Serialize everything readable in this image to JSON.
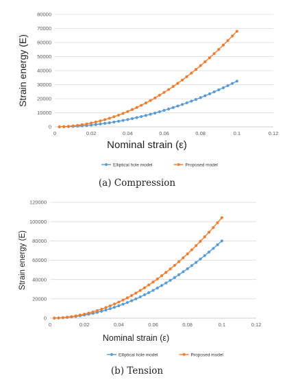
{
  "chart_data": [
    {
      "type": "line",
      "caption": "(a)  Compression",
      "xlabel": "Nominal strain (ε)",
      "ylabel": "Strain energy (E)",
      "xlim": [
        0,
        0.12
      ],
      "ylim": [
        0,
        80000
      ],
      "x_ticks": [
        "0",
        "0.02",
        "0.04",
        "0.06",
        "0.08",
        "0.1",
        "0.12"
      ],
      "y_ticks": [
        "0",
        "10000",
        "20000",
        "30000",
        "40000",
        "50000",
        "60000",
        "70000",
        "80000"
      ],
      "grid": "horizontal",
      "legend": "bottom",
      "x": [
        0.0025,
        0.005,
        0.0075,
        0.01,
        0.0125,
        0.015,
        0.0175,
        0.02,
        0.0225,
        0.025,
        0.0275,
        0.03,
        0.0325,
        0.035,
        0.0375,
        0.04,
        0.0425,
        0.045,
        0.0475,
        0.05,
        0.0525,
        0.055,
        0.0575,
        0.06,
        0.0625,
        0.065,
        0.0675,
        0.07,
        0.0725,
        0.075,
        0.0775,
        0.08,
        0.0825,
        0.085,
        0.0875,
        0.09,
        0.0925,
        0.095,
        0.0975,
        0.1
      ],
      "series": [
        {
          "name": "Elliptical hole model",
          "color": "#5b9bd5",
          "values": [
            20,
            81,
            183,
            325,
            508,
            731,
            995,
            1300,
            1645,
            2031,
            2458,
            2925,
            3433,
            3981,
            4570,
            5200,
            5870,
            6581,
            7333,
            8125,
            8958,
            9831,
            10745,
            11700,
            12695,
            13731,
            14808,
            15925,
            17083,
            18281,
            19520,
            20800,
            22120,
            23481,
            24883,
            26325,
            27808,
            29331,
            30895,
            32500
          ]
        },
        {
          "name": "Proposed model",
          "color": "#ed7d31",
          "values": [
            43,
            170,
            383,
            680,
            1063,
            1530,
            2083,
            2720,
            3443,
            4250,
            5143,
            6120,
            7183,
            8330,
            9563,
            10880,
            12283,
            13770,
            15343,
            17000,
            18743,
            20570,
            22483,
            24480,
            26563,
            28730,
            30983,
            33320,
            35743,
            38250,
            40843,
            43520,
            46283,
            49130,
            52063,
            55080,
            58183,
            61370,
            64643,
            68000
          ]
        }
      ]
    },
    {
      "type": "line",
      "caption": "(b)  Tension",
      "xlabel": "Nominal strain (ε)",
      "ylabel": "Strain energy (E)",
      "xlim": [
        0,
        0.12
      ],
      "ylim": [
        0,
        120000
      ],
      "x_ticks": [
        "0",
        "0.02",
        "0.04",
        "0.06",
        "0.08",
        "0.1",
        "0.12"
      ],
      "y_ticks": [
        "0",
        "20000",
        "40000",
        "60000",
        "80000",
        "100000",
        "120000"
      ],
      "grid": "horizontal",
      "legend": "bottom",
      "x": [
        0.0025,
        0.005,
        0.0075,
        0.01,
        0.0125,
        0.015,
        0.0175,
        0.02,
        0.0225,
        0.025,
        0.0275,
        0.03,
        0.0325,
        0.035,
        0.0375,
        0.04,
        0.0425,
        0.045,
        0.0475,
        0.05,
        0.0525,
        0.055,
        0.0575,
        0.06,
        0.0625,
        0.065,
        0.0675,
        0.07,
        0.0725,
        0.075,
        0.0775,
        0.08,
        0.0825,
        0.085,
        0.0875,
        0.09,
        0.0925,
        0.095,
        0.0975,
        0.1
      ],
      "series": [
        {
          "name": "Elliptical hole model",
          "color": "#5b9bd5",
          "values": [
            50,
            200,
            450,
            800,
            1250,
            1800,
            2450,
            3200,
            4050,
            5000,
            6050,
            7200,
            8450,
            9800,
            11250,
            12800,
            14450,
            16200,
            18050,
            20000,
            22050,
            24200,
            26450,
            28800,
            31250,
            33800,
            36450,
            39200,
            42050,
            45000,
            48050,
            51200,
            54450,
            57800,
            61250,
            64800,
            68450,
            72200,
            76050,
            80000
          ]
        },
        {
          "name": "Proposed model",
          "color": "#ed7d31",
          "values": [
            65,
            260,
            585,
            1040,
            1625,
            2340,
            3185,
            4160,
            5265,
            6500,
            7865,
            9360,
            10985,
            12740,
            14625,
            16640,
            18785,
            21060,
            23465,
            26000,
            28665,
            31460,
            34385,
            37440,
            40625,
            43940,
            47385,
            50960,
            54665,
            58500,
            62465,
            66560,
            70785,
            75140,
            79625,
            84240,
            88985,
            93860,
            98865,
            104000
          ]
        }
      ]
    }
  ]
}
